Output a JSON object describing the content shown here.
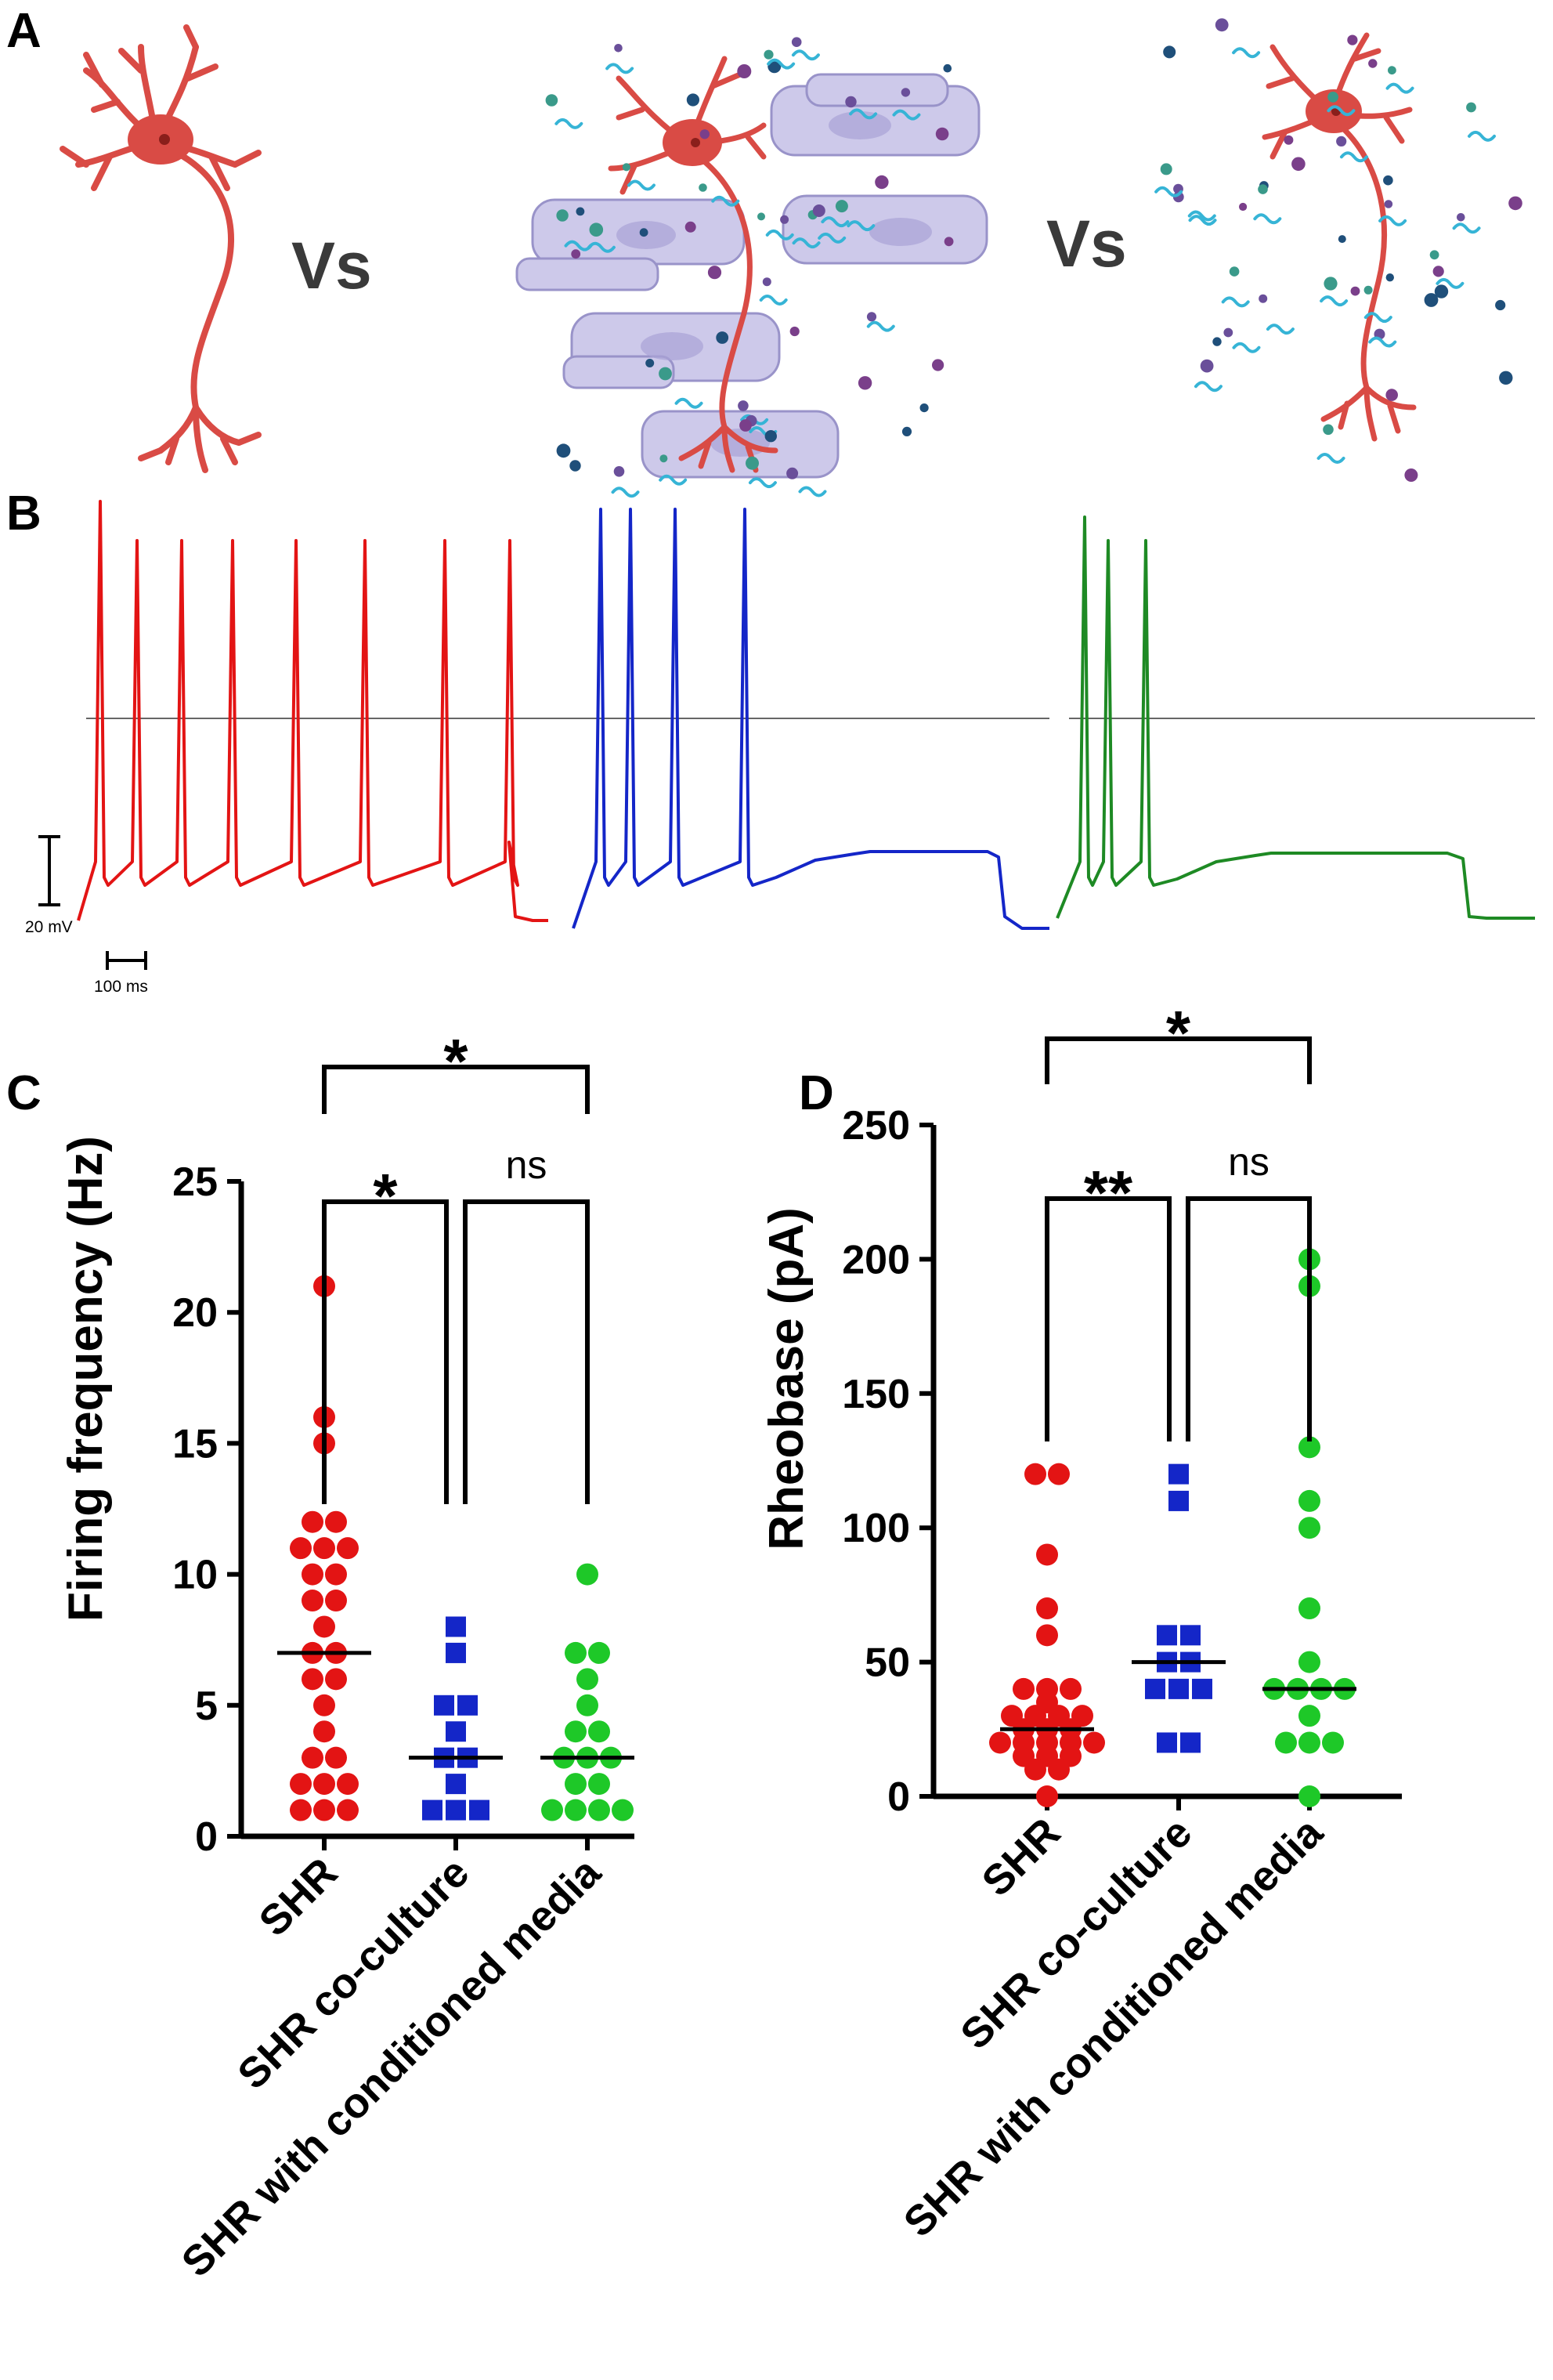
{
  "panel_labels": {
    "a": "A",
    "b": "B",
    "c": "C",
    "d": "D"
  },
  "panel_a": {
    "vs_label": "Vs"
  },
  "colors": {
    "red": "#e31414",
    "blue": "#1426c8",
    "green": "#1e8a24",
    "dot_green": "#1ec828",
    "neuron": "#d94b45",
    "myotube": "#c8c4e8"
  },
  "panel_b": {
    "scale_voltage": "20 mV",
    "scale_time": "100 ms",
    "trace_spike_counts": [
      8,
      4,
      3
    ]
  },
  "chart_data": [
    {
      "type": "scatter",
      "panel": "C",
      "title": "",
      "xlabel": "",
      "ylabel": "Firing frequency (Hz)",
      "ylim": [
        0,
        25
      ],
      "yticks": [
        "0",
        "5",
        "10",
        "15",
        "20",
        "25"
      ],
      "categories": [
        "SHR",
        "SHR co-culture",
        "SHR with conditioned media"
      ],
      "series": [
        {
          "name": "SHR",
          "marker": "circle",
          "color": "#e31414",
          "median": 7,
          "values": [
            21,
            16,
            15,
            12,
            12,
            11,
            11,
            11,
            10,
            10,
            9,
            9,
            8,
            7,
            7,
            6,
            6,
            5,
            4,
            3,
            3,
            2,
            2,
            2,
            1,
            1,
            1
          ]
        },
        {
          "name": "SHR co-culture",
          "marker": "square",
          "color": "#1426c8",
          "median": 3,
          "values": [
            8,
            7,
            5,
            5,
            4,
            3,
            3,
            2,
            1,
            1,
            1
          ]
        },
        {
          "name": "SHR with conditioned media",
          "marker": "circle",
          "color": "#1ec828",
          "median": 3,
          "values": [
            10,
            7,
            7,
            6,
            5,
            4,
            4,
            3,
            3,
            3,
            2,
            2,
            1,
            1,
            1,
            1
          ]
        }
      ],
      "significance": [
        {
          "from": 0,
          "to": 2,
          "label": "*"
        },
        {
          "from": 0,
          "to": 1,
          "label": "*"
        },
        {
          "from": 1,
          "to": 2,
          "label": "ns"
        }
      ]
    },
    {
      "type": "scatter",
      "panel": "D",
      "title": "",
      "xlabel": "",
      "ylabel": "Rheobase (pA)",
      "ylim": [
        0,
        250
      ],
      "yticks": [
        "0",
        "50",
        "100",
        "150",
        "200",
        "250"
      ],
      "categories": [
        "SHR",
        "SHR co-culture",
        "SHR with conditioned media"
      ],
      "series": [
        {
          "name": "SHR",
          "marker": "circle",
          "color": "#e31414",
          "median": 25,
          "values": [
            120,
            120,
            90,
            70,
            60,
            40,
            40,
            40,
            35,
            30,
            30,
            30,
            30,
            25,
            25,
            25,
            20,
            20,
            20,
            20,
            20,
            15,
            15,
            15,
            10,
            10,
            0
          ]
        },
        {
          "name": "SHR co-culture",
          "marker": "square",
          "color": "#1426c8",
          "median": 50,
          "values": [
            120,
            110,
            60,
            60,
            50,
            50,
            40,
            40,
            40,
            20,
            20
          ]
        },
        {
          "name": "SHR with conditioned media",
          "marker": "circle",
          "color": "#1ec828",
          "median": 40,
          "values": [
            200,
            190,
            130,
            110,
            100,
            70,
            50,
            40,
            40,
            40,
            40,
            30,
            20,
            20,
            20,
            0
          ]
        }
      ],
      "significance": [
        {
          "from": 0,
          "to": 2,
          "label": "*"
        },
        {
          "from": 0,
          "to": 1,
          "label": "**"
        },
        {
          "from": 1,
          "to": 2,
          "label": "ns"
        }
      ]
    }
  ]
}
